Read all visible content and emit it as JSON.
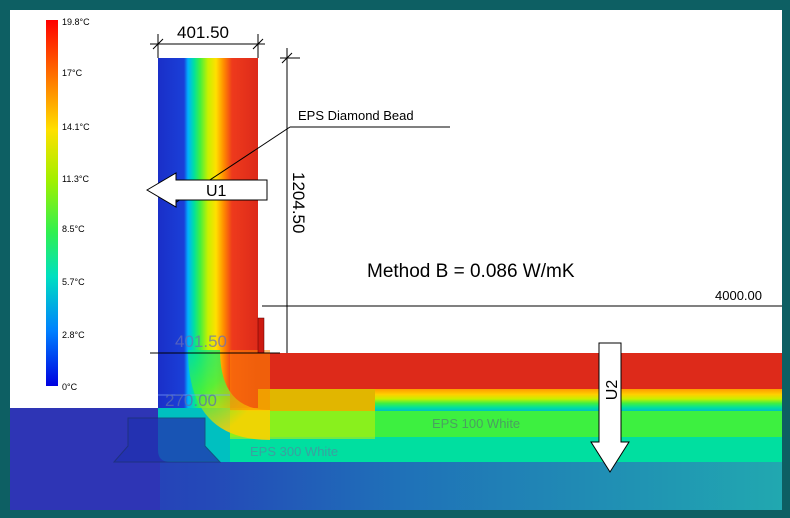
{
  "legend": {
    "ticks": [
      "19.8°C",
      "17°C",
      "14.1°C",
      "11.3°C",
      "8.5°C",
      "5.7°C",
      "2.8°C",
      "0°C"
    ],
    "colors": [
      "#ff0000",
      "#ff6a00",
      "#ffd000",
      "#bff000",
      "#3df040",
      "#00e0a8",
      "#00a8ff",
      "#0000e8"
    ]
  },
  "dimensions": {
    "wall_top_width": "401.50",
    "wall_height": "1204.50",
    "wall_bottom_width": "401.50",
    "footing_width": "270.00",
    "floor_length": "4000.00"
  },
  "labels": {
    "eps_diamond_bead": "EPS Diamond Bead",
    "eps_100_white": "EPS 100 White",
    "eps_300_white": "EPS 300 White",
    "method_text": "Method B = 0.086 W/mK"
  },
  "arrows": {
    "u1": "U1",
    "u2": "U2"
  }
}
